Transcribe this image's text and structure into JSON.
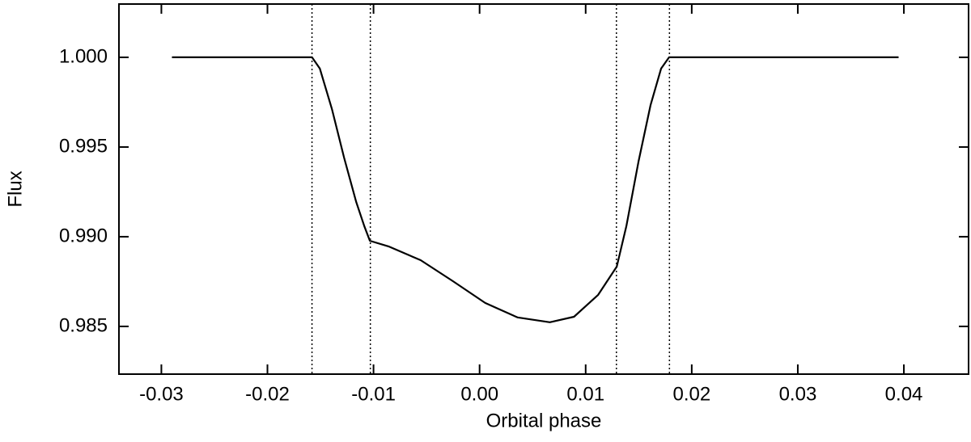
{
  "chart_data": {
    "type": "line",
    "xlabel": "Orbital phase",
    "ylabel": "Flux",
    "x": [
      -0.029,
      -0.0158,
      -0.01506,
      -0.01392,
      -0.01278,
      -0.01163,
      -0.01087,
      -0.01034,
      -0.00859,
      -0.00555,
      -0.00251,
      0.00053,
      0.00357,
      0.00662,
      0.0089,
      0.01118,
      0.01293,
      0.01384,
      0.01498,
      0.01612,
      0.01711,
      0.01787,
      0.0395
    ],
    "values": [
      1.0,
      1.0,
      0.99937,
      0.99712,
      0.99441,
      0.99194,
      0.99059,
      0.98977,
      0.98946,
      0.98869,
      0.98752,
      0.98631,
      0.9855,
      0.98523,
      0.98554,
      0.98676,
      0.98833,
      0.99059,
      0.99419,
      0.99734,
      0.99937,
      1.0,
      1.0
    ],
    "color": "#000000",
    "vlines": [
      -0.0158,
      -0.0103,
      0.0129,
      0.0179
    ],
    "xlim": [
      -0.034,
      0.0461
    ],
    "ylim": [
      0.98234,
      1.00297
    ],
    "xticks": [
      -0.03,
      -0.02,
      -0.01,
      {
        "value": 0,
        "label": "0.00"
      },
      0.01,
      0.02,
      0.03,
      0.04
    ],
    "yticks": [
      {
        "value": 0.985,
        "label": "0.985"
      },
      {
        "value": 0.99,
        "label": "0.990"
      },
      0.995,
      {
        "value": 1,
        "label": "1.000"
      }
    ]
  }
}
